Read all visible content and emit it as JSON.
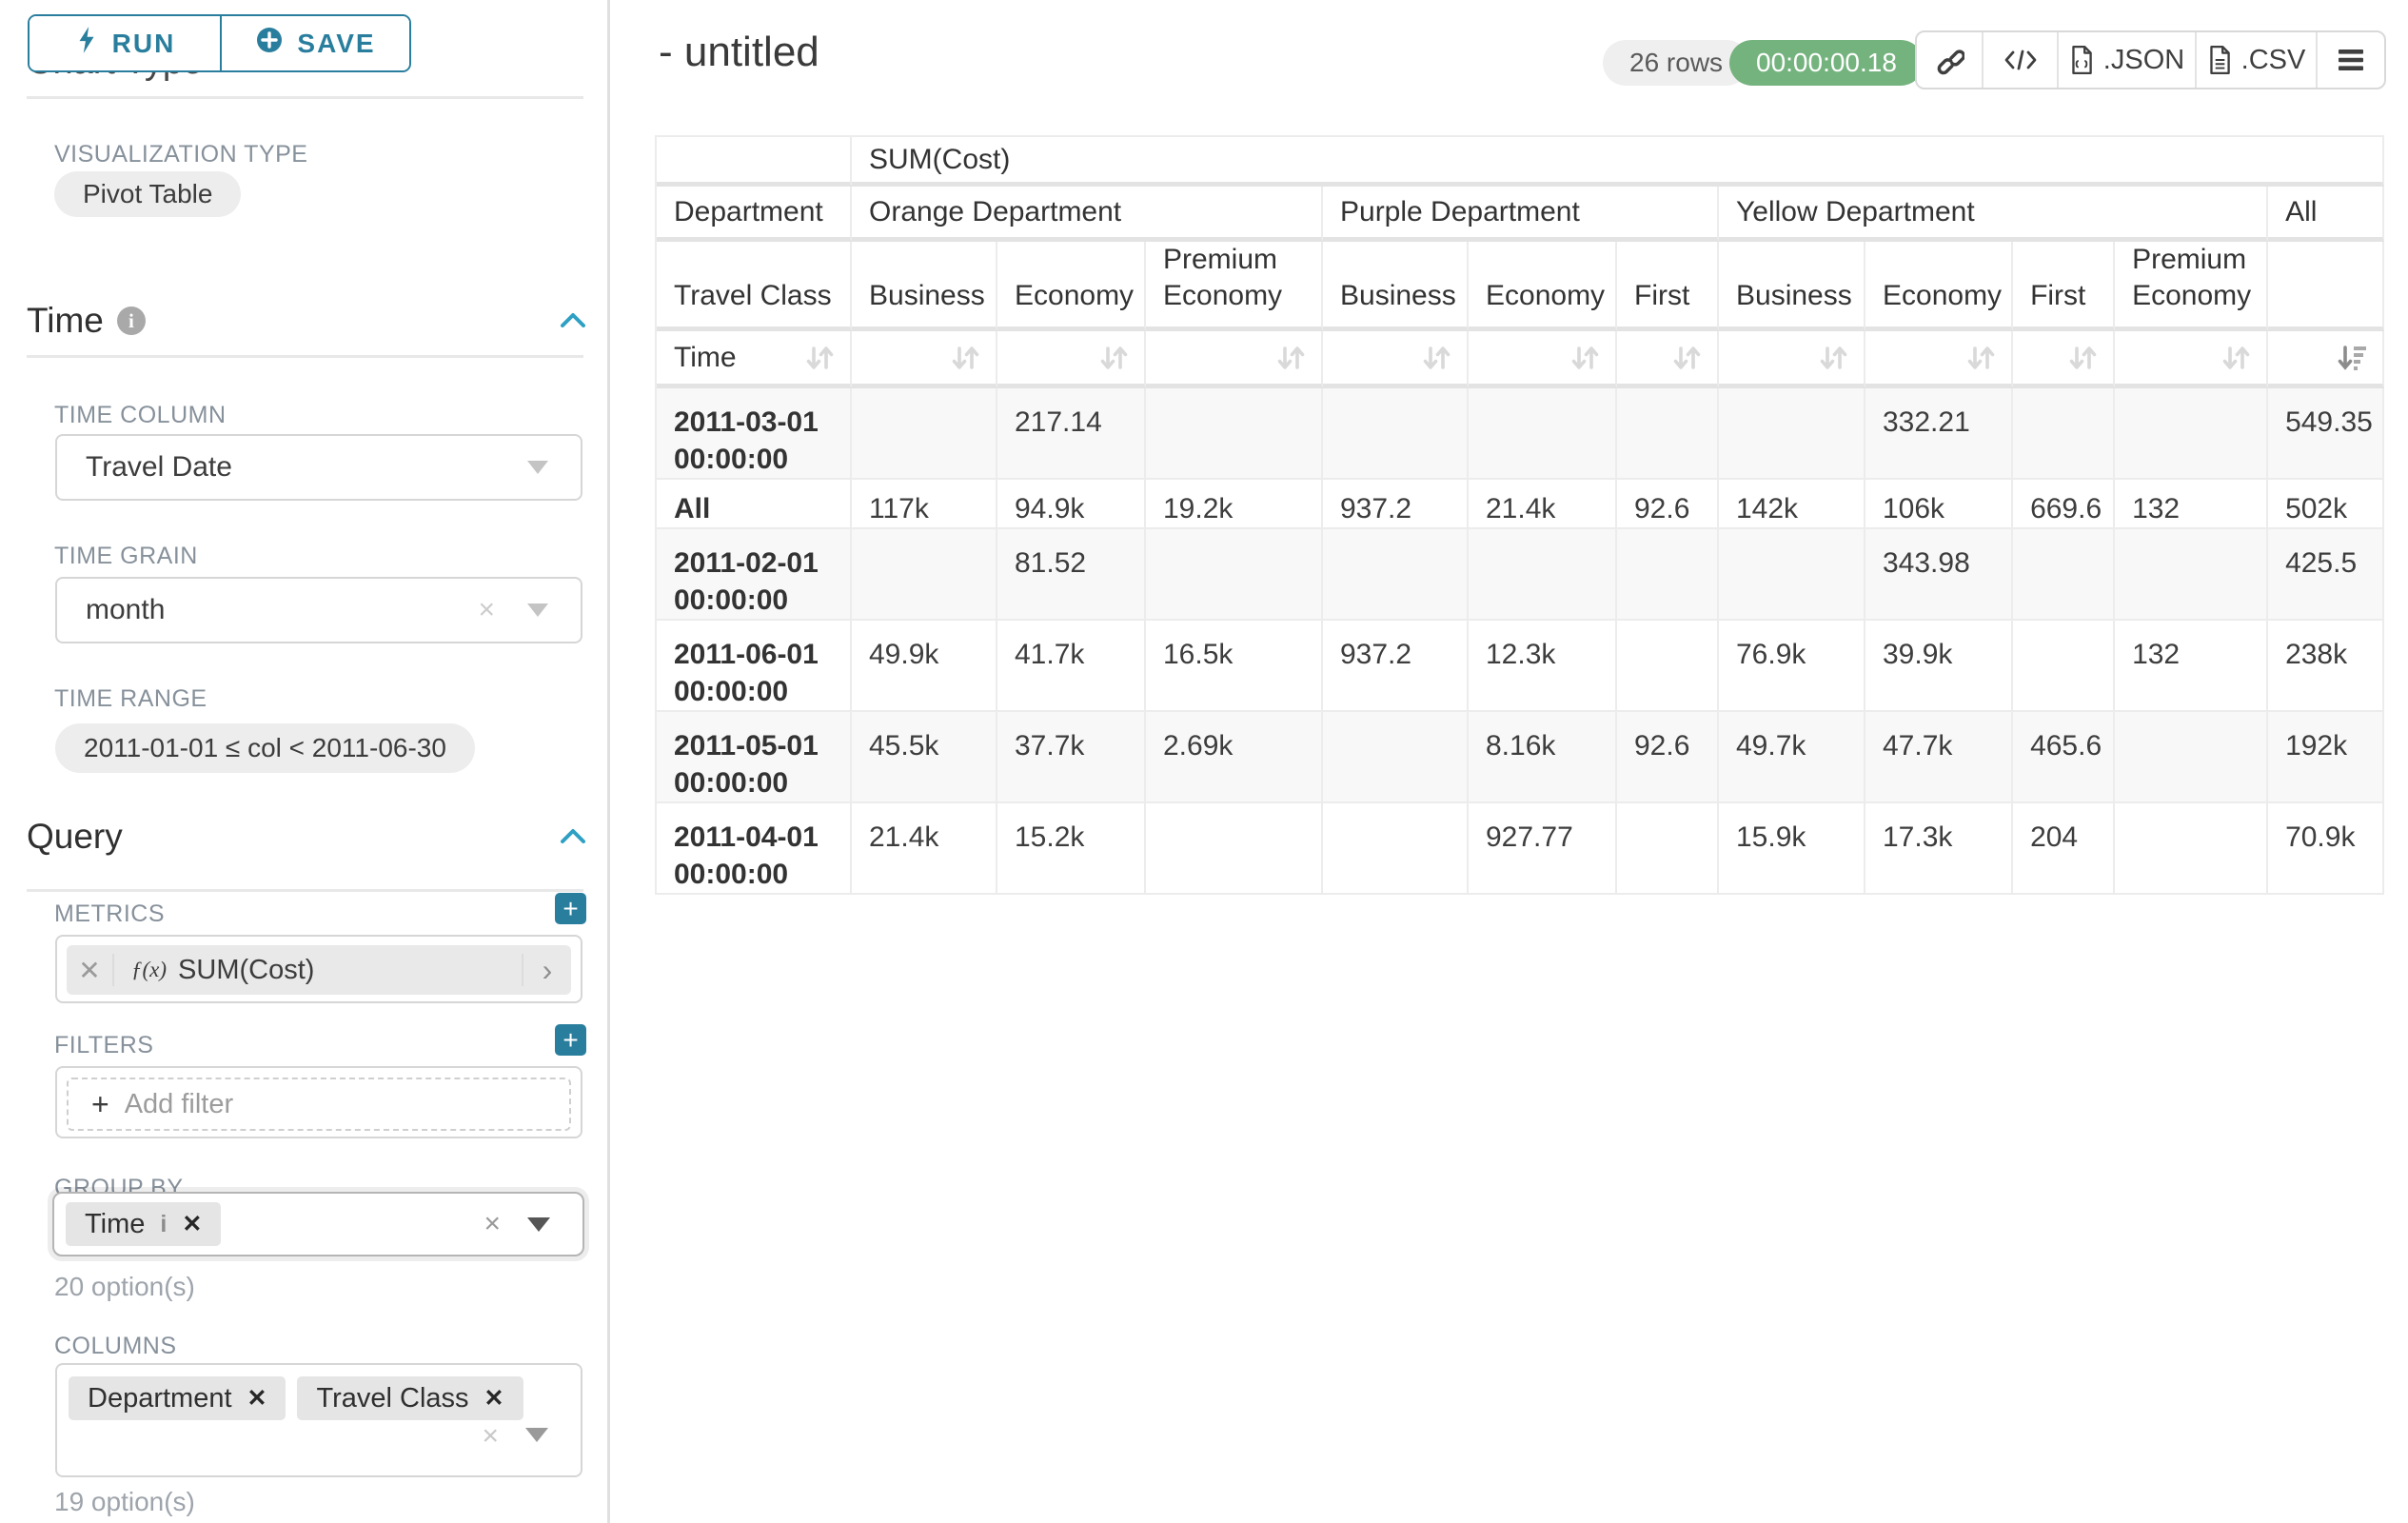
{
  "colors": {
    "accent": "#2a7e9d",
    "chevron": "#2fa0c3",
    "timer_green": "#75b37e"
  },
  "panel": {
    "run_label": "RUN",
    "save_label": "SAVE",
    "chart_type_section": "Chart Type",
    "viz_type_label": "VISUALIZATION TYPE",
    "viz_type_value": "Pivot Table",
    "time_section": "Time",
    "time_column_label": "TIME COLUMN",
    "time_column_value": "Travel Date",
    "time_grain_label": "TIME GRAIN",
    "time_grain_value": "month",
    "time_range_label": "TIME RANGE",
    "time_range_value": "2011-01-01 ≤ col < 2011-06-30",
    "query_section": "Query",
    "metrics_label": "METRICS",
    "metric_fx": "ƒ(x)",
    "metric_value": "SUM(Cost)",
    "filters_label": "FILTERS",
    "add_filter_label": "Add filter",
    "groupby_label": "GROUP BY",
    "groupby_chip": "Time",
    "groupby_options_hint": "20 option(s)",
    "columns_label": "COLUMNS",
    "columns_chips": [
      "Department",
      "Travel Class"
    ],
    "columns_options_hint": "19 option(s)"
  },
  "header": {
    "title": "- untitled",
    "rows_badge": "26 rows",
    "timer": "00:00:00.18",
    "json_label": ".JSON",
    "csv_label": ".CSV"
  },
  "table": {
    "metric_header": "SUM(Cost)",
    "row_dim_label": "Department",
    "groups": [
      {
        "label": "Orange Department",
        "span": 3
      },
      {
        "label": "Purple Department",
        "span": 3
      },
      {
        "label": "Yellow Department",
        "span": 4
      },
      {
        "label": "All",
        "span": 1
      }
    ],
    "col_dim_label": "Travel Class",
    "classes": [
      "Business",
      "Economy",
      "Premium Economy",
      "Business",
      "Economy",
      "First",
      "Business",
      "Economy",
      "First",
      "Premium Economy",
      ""
    ],
    "time_label": "Time",
    "body": [
      {
        "label": "2011-03-01 00:00:00",
        "values": [
          "",
          "217.14",
          "",
          "",
          "",
          "",
          "",
          "332.21",
          "",
          "",
          "549.35"
        ]
      },
      {
        "label": "All",
        "values": [
          "117k",
          "94.9k",
          "19.2k",
          "937.2",
          "21.4k",
          "92.6",
          "142k",
          "106k",
          "669.6",
          "132",
          "502k"
        ]
      },
      {
        "label": "2011-02-01 00:00:00",
        "values": [
          "",
          "81.52",
          "",
          "",
          "",
          "",
          "",
          "343.98",
          "",
          "",
          "425.5"
        ]
      },
      {
        "label": "2011-06-01 00:00:00",
        "values": [
          "49.9k",
          "41.7k",
          "16.5k",
          "937.2",
          "12.3k",
          "",
          "76.9k",
          "39.9k",
          "",
          "132",
          "238k"
        ]
      },
      {
        "label": "2011-05-01 00:00:00",
        "values": [
          "45.5k",
          "37.7k",
          "2.69k",
          "",
          "8.16k",
          "92.6",
          "49.7k",
          "47.7k",
          "465.6",
          "",
          "192k"
        ]
      },
      {
        "label": "2011-04-01 00:00:00",
        "values": [
          "21.4k",
          "15.2k",
          "",
          "",
          "927.77",
          "",
          "15.9k",
          "17.3k",
          "204",
          "",
          "70.9k"
        ]
      }
    ]
  }
}
